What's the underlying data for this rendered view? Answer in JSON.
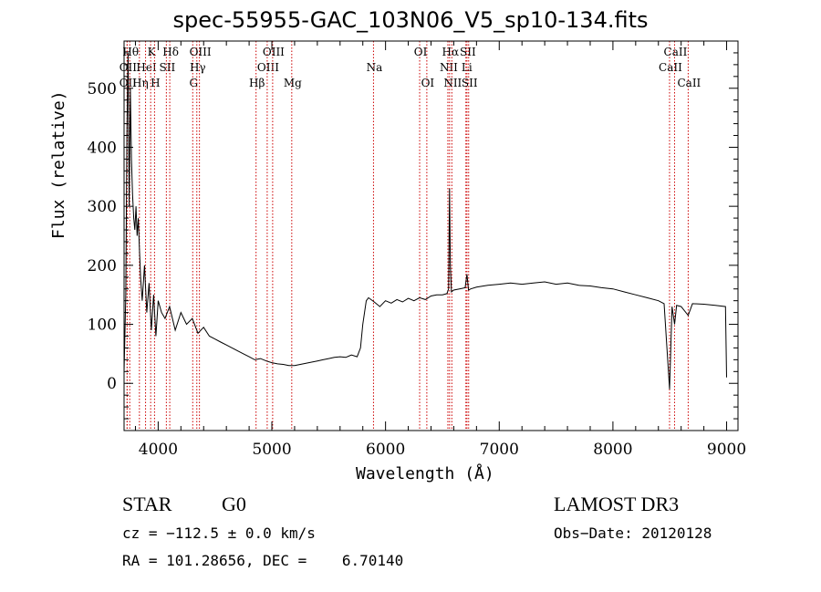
{
  "chart_data": {
    "type": "line",
    "title": "spec-55955-GAC_103N06_V5_sp10-134.fits",
    "xlabel": "Wavelength (Å)",
    "ylabel": "Flux (relative)",
    "xlim": [
      3700,
      9100
    ],
    "ylim": [
      -80,
      580
    ],
    "xticks": [
      4000,
      5000,
      6000,
      7000,
      8000,
      9000
    ],
    "yticks": [
      0,
      100,
      200,
      300,
      400,
      500
    ],
    "series": [
      {
        "name": "flux",
        "x": [
          3700,
          3705,
          3715,
          3725,
          3735,
          3745,
          3755,
          3765,
          3775,
          3785,
          3795,
          3805,
          3815,
          3825,
          3835,
          3845,
          3860,
          3880,
          3900,
          3920,
          3940,
          3960,
          3980,
          4000,
          4030,
          4060,
          4100,
          4150,
          4200,
          4250,
          4300,
          4350,
          4400,
          4450,
          4500,
          4550,
          4600,
          4650,
          4700,
          4750,
          4800,
          4850,
          4900,
          4950,
          5000,
          5050,
          5100,
          5150,
          5200,
          5250,
          5300,
          5350,
          5400,
          5450,
          5500,
          5550,
          5600,
          5650,
          5700,
          5750,
          5780,
          5800,
          5830,
          5850,
          5900,
          5950,
          6000,
          6050,
          6100,
          6150,
          6200,
          6250,
          6300,
          6350,
          6400,
          6450,
          6500,
          6540,
          6555,
          6563,
          6570,
          6580,
          6600,
          6650,
          6700,
          6716,
          6730,
          6750,
          6800,
          6900,
          7000,
          7100,
          7200,
          7300,
          7400,
          7500,
          7600,
          7700,
          7800,
          7900,
          8000,
          8100,
          8200,
          8300,
          8400,
          8450,
          8498,
          8520,
          8542,
          8560,
          8600,
          8662,
          8700,
          8800,
          8900,
          8990,
          9000
        ],
        "values": [
          20,
          60,
          150,
          420,
          560,
          300,
          500,
          380,
          320,
          280,
          260,
          300,
          250,
          280,
          230,
          180,
          140,
          200,
          120,
          170,
          90,
          150,
          80,
          140,
          120,
          110,
          130,
          90,
          120,
          100,
          110,
          85,
          95,
          80,
          75,
          70,
          65,
          60,
          55,
          50,
          45,
          40,
          42,
          38,
          35,
          33,
          32,
          30,
          30,
          32,
          34,
          36,
          38,
          40,
          42,
          44,
          45,
          44,
          48,
          45,
          60,
          100,
          140,
          145,
          138,
          130,
          140,
          136,
          142,
          138,
          144,
          140,
          145,
          142,
          148,
          150,
          150,
          152,
          160,
          330,
          200,
          155,
          158,
          160,
          162,
          185,
          158,
          160,
          163,
          166,
          168,
          170,
          168,
          170,
          172,
          168,
          170,
          166,
          165,
          162,
          160,
          155,
          150,
          145,
          140,
          135,
          -10,
          130,
          100,
          132,
          130,
          115,
          135,
          134,
          132,
          130,
          10
        ]
      }
    ],
    "line_markers": [
      {
        "label": "OII",
        "x": 3727,
        "row": 2
      },
      {
        "label": "Hθ",
        "x": 3750,
        "row": 0
      },
      {
        "label": "Hη",
        "x": 3835,
        "row": 2
      },
      {
        "label": "OII",
        "x": 3727,
        "row": 1
      },
      {
        "label": "HeI",
        "x": 3889,
        "row": 1
      },
      {
        "label": "K",
        "x": 3934,
        "row": 0
      },
      {
        "label": "H",
        "x": 3968,
        "row": 2
      },
      {
        "label": "SII",
        "x": 4072,
        "row": 1
      },
      {
        "label": "Hδ",
        "x": 4102,
        "row": 0
      },
      {
        "label": "G",
        "x": 4304,
        "row": 2
      },
      {
        "label": "Hγ",
        "x": 4340,
        "row": 1
      },
      {
        "label": "OIII",
        "x": 4363,
        "row": 0
      },
      {
        "label": "Hβ",
        "x": 4861,
        "row": 2
      },
      {
        "label": "OIII",
        "x": 4959,
        "row": 1
      },
      {
        "label": "OIII",
        "x": 5007,
        "row": 0
      },
      {
        "label": "Mg",
        "x": 5175,
        "row": 2
      },
      {
        "label": "Na",
        "x": 5894,
        "row": 1
      },
      {
        "label": "OI",
        "x": 6300,
        "row": 0
      },
      {
        "label": "OI",
        "x": 6363,
        "row": 2
      },
      {
        "label": "NII",
        "x": 6548,
        "row": 1
      },
      {
        "label": "Hα",
        "x": 6563,
        "row": 0
      },
      {
        "label": "NII",
        "x": 6583,
        "row": 2
      },
      {
        "label": "Li",
        "x": 6707,
        "row": 1
      },
      {
        "label": "SII",
        "x": 6716,
        "row": 0
      },
      {
        "label": "SII",
        "x": 6731,
        "row": 2
      },
      {
        "label": "CaII",
        "x": 8498,
        "row": 1
      },
      {
        "label": "CaII",
        "x": 8542,
        "row": 0
      },
      {
        "label": "CaII",
        "x": 8662,
        "row": 2
      }
    ]
  },
  "info": {
    "class": "STAR",
    "subclass": "G0",
    "survey": "LAMOST DR3",
    "cz": "cz = −112.5 ± 0.0 km/s",
    "obs_date": "Obs−Date: 20120128",
    "coords": "RA = 101.28656, DEC =    6.70140"
  },
  "colors": {
    "marker": "#cc0000",
    "line": "#000000"
  }
}
